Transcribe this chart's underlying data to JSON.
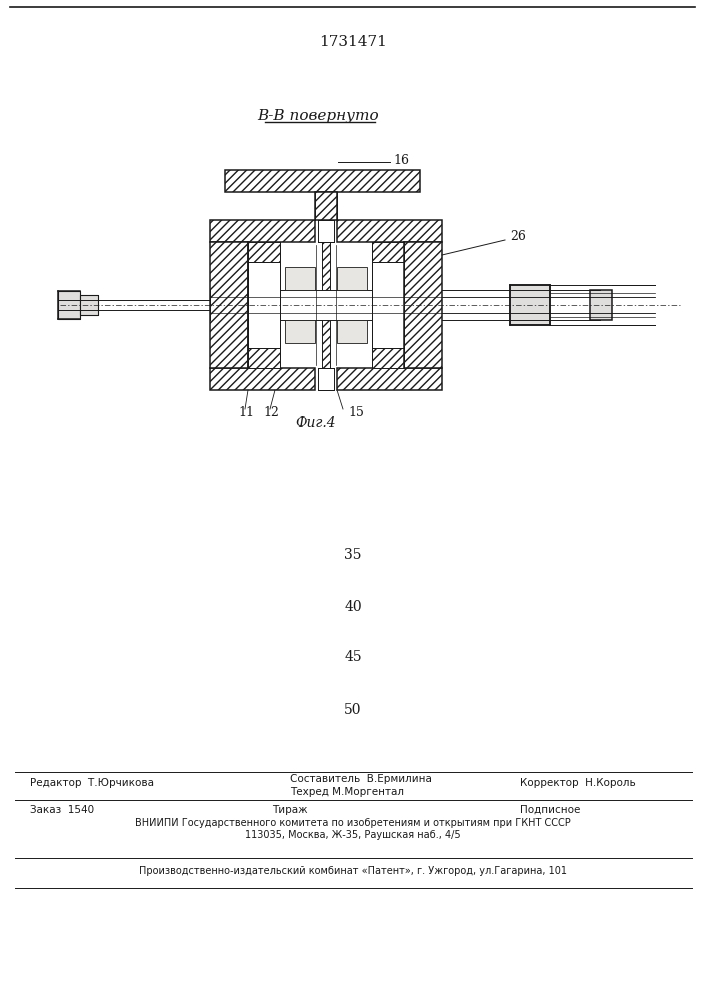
{
  "patent_number": "1731471",
  "view_label": "В-В повернуто",
  "fig_label": "Фиг.4",
  "col_numbers": [
    "35",
    "40",
    "45",
    "50"
  ],
  "editor_line": "Редактор  Т.Юрчикова",
  "composer_line": "Составитель  В.Ермилина",
  "techred_line": "Техред М.Моргентал",
  "corrector_line": "Корректор  Н.Король",
  "order_line": "Заказ  1540",
  "tirazh_line": "Тираж",
  "podpisnoe_line": "Подписное",
  "vniiipi_line": "ВНИИПИ Государственного комитета по изобретениям и открытиям при ГКНТ СССР",
  "address_line": "113035, Москва, Ж-35, Раушская наб., 4/5",
  "publisher_line": "Производственно-издательский комбинат «Патент», г. Ужгород, ул.Гагарина, 101",
  "bg_color": "#ffffff",
  "line_color": "#1a1a1a"
}
